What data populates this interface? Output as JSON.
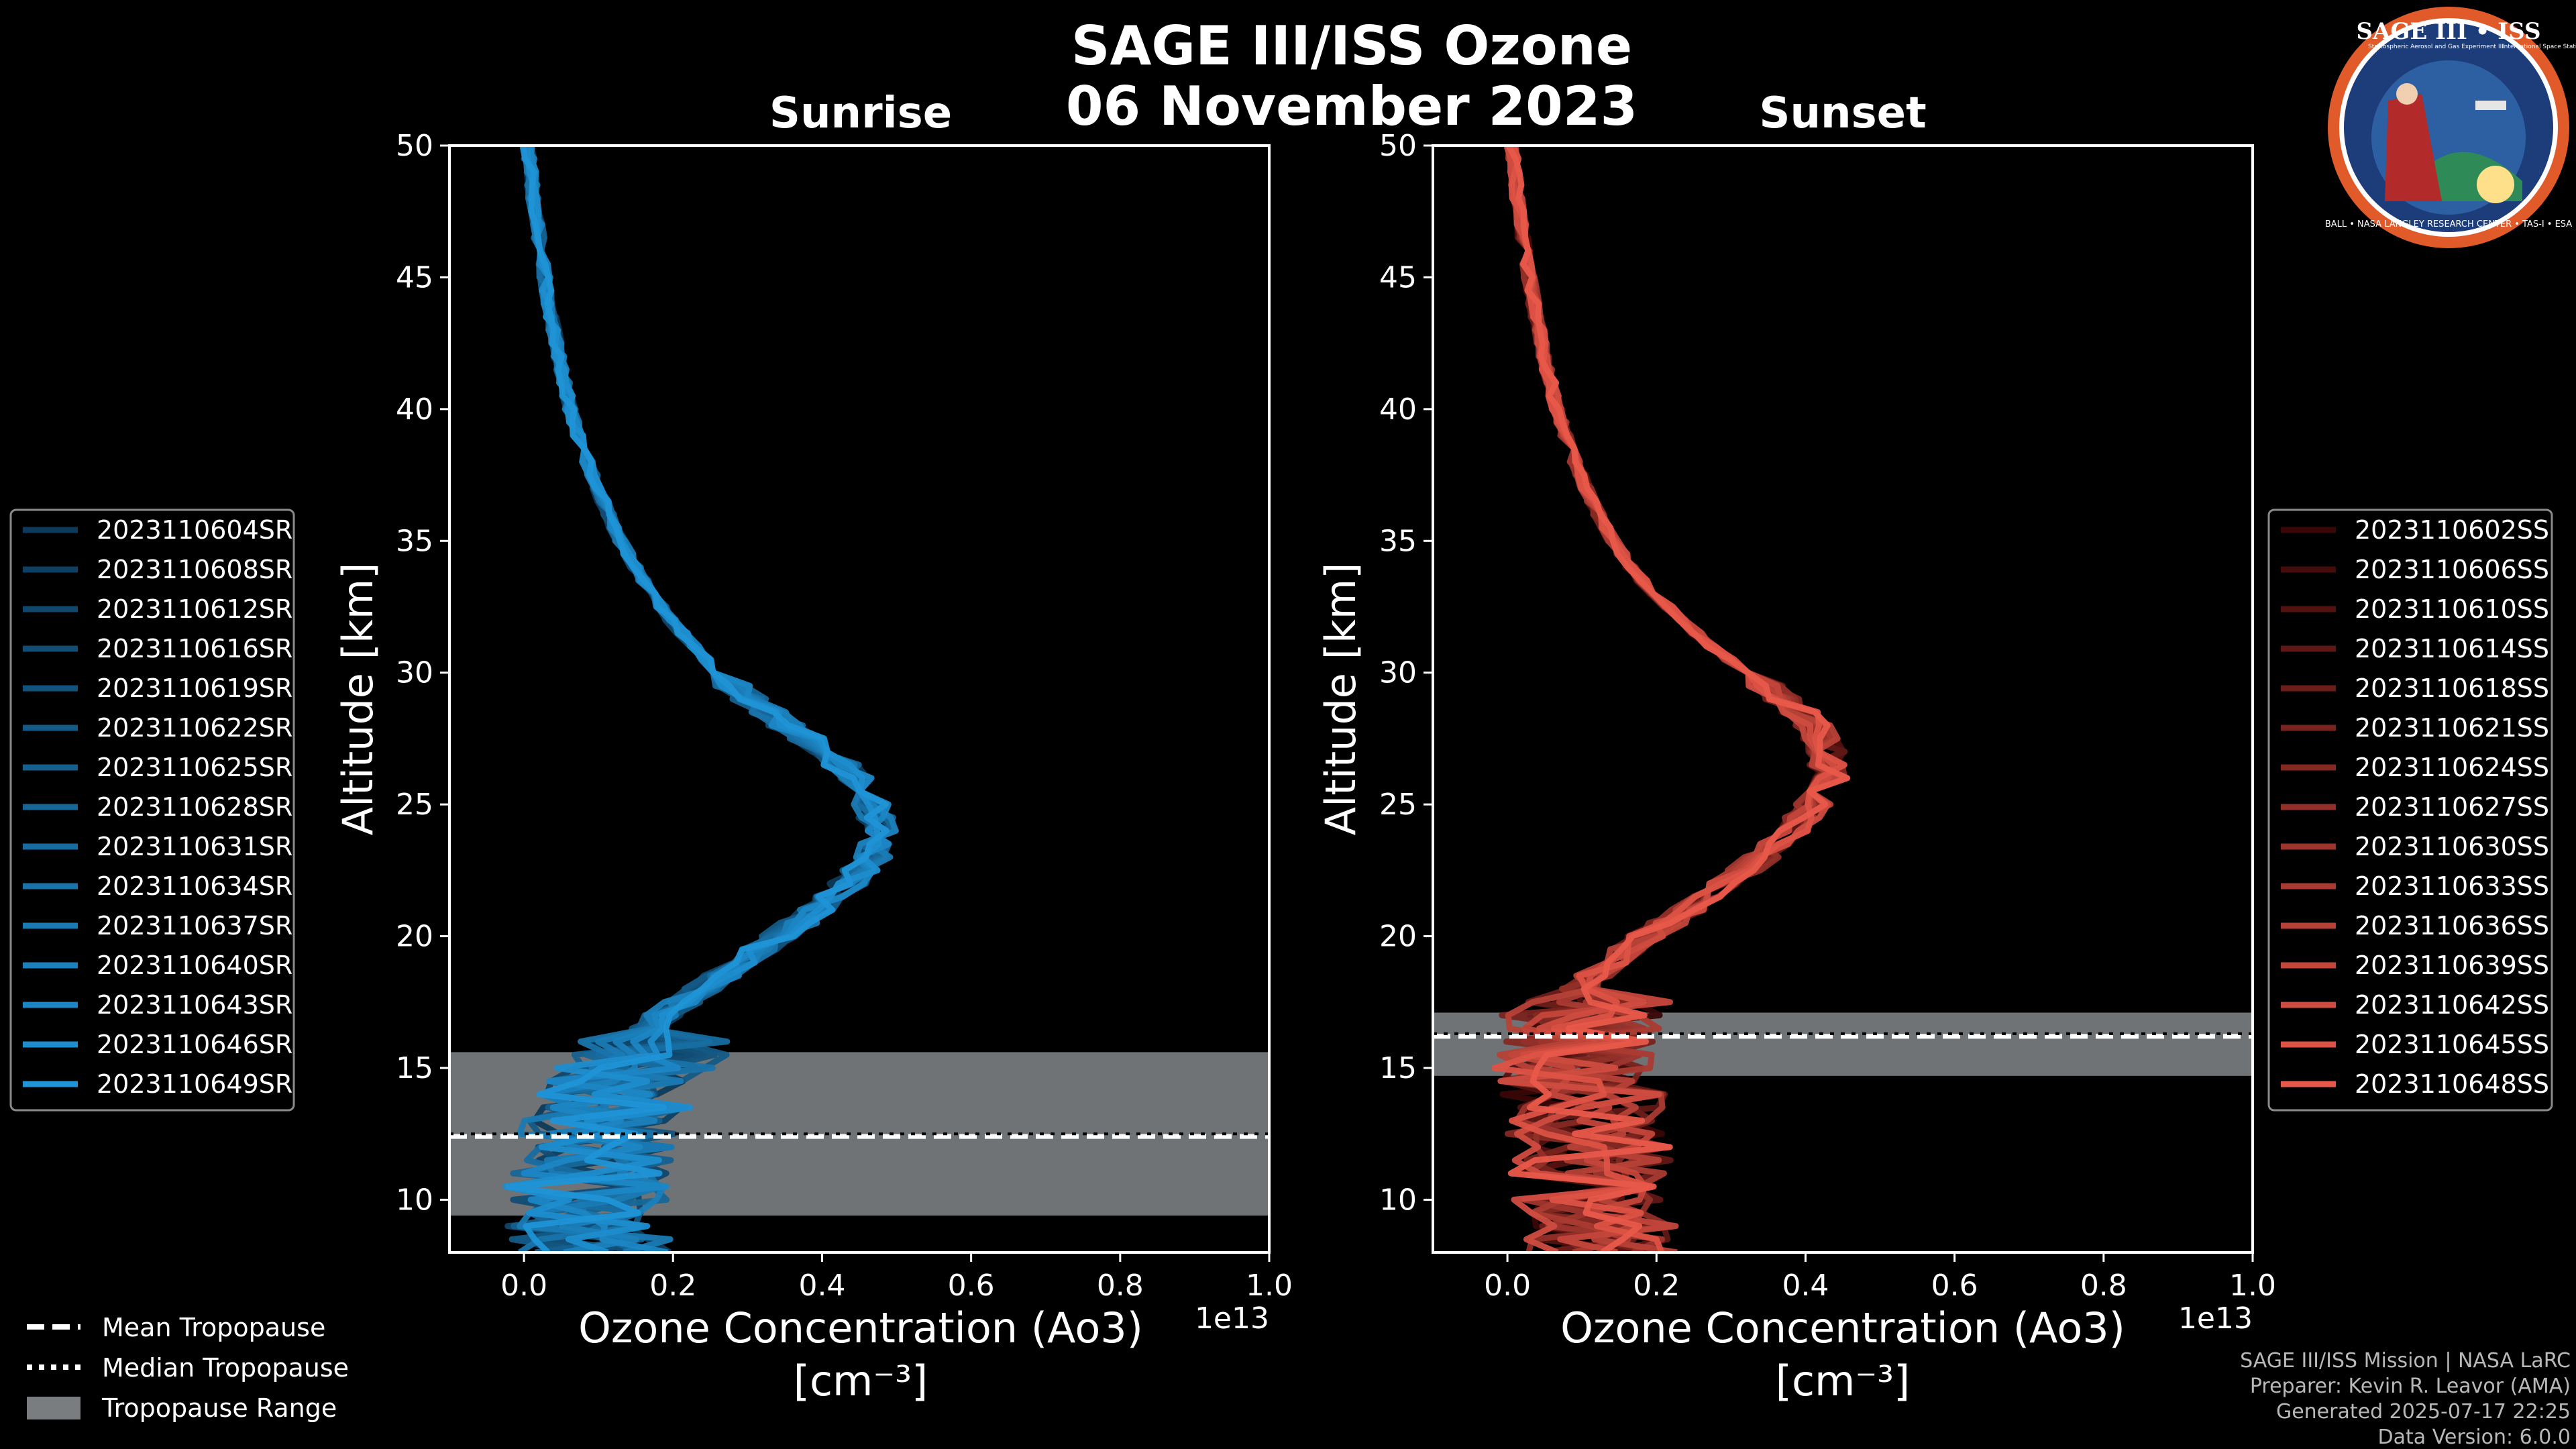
{
  "header": {
    "title_line1": "SAGE III/ISS Ozone",
    "title_line2": "06 November 2023"
  },
  "logo": {
    "text": "SAGE III • ISS",
    "ring_text": "BALL • NASA LANGLEY RESEARCH CENTER • TAS-I • ESA",
    "sub_left": "Stratospheric Aerosol and Gas Experiment III",
    "sub_right": "International Space Station"
  },
  "colors": {
    "background": "#000000",
    "sunrise_dark": "#0d3a5a",
    "sunrise_light": "#1f93d6",
    "sunset_dark": "#3a0606",
    "sunset_light": "#e8584a",
    "tropopause_fill": "#7a7d80"
  },
  "chart_data": [
    {
      "type": "line",
      "panel": "sunrise",
      "title": "Sunrise",
      "xlabel": "Ozone Concentration (Ao3)",
      "xunits": "[cm⁻³]",
      "ylabel": "Altitude [km]",
      "xlim": [
        -0.1,
        1.0
      ],
      "ylim": [
        8,
        50
      ],
      "x_offset_label": "1e13",
      "xticks": [
        "0.0",
        "0.2",
        "0.4",
        "0.6",
        "0.8",
        "1.0"
      ],
      "yticks": [
        "10",
        "15",
        "20",
        "25",
        "30",
        "35",
        "40",
        "45",
        "50"
      ],
      "tropopause": {
        "mean_km": 12.4,
        "median_km": 12.5,
        "range_km": [
          9.4,
          15.6
        ]
      },
      "mean_profile": {
        "alt": [
          8,
          9,
          10,
          11,
          12,
          13,
          14,
          15,
          16,
          17,
          18,
          19,
          20,
          21,
          22,
          23,
          24,
          25,
          26,
          27,
          28,
          29,
          30,
          31,
          32,
          33,
          34,
          35,
          36,
          37,
          38,
          39,
          40,
          42,
          44,
          46,
          48,
          50
        ],
        "x": [
          0.06,
          0.05,
          0.05,
          0.05,
          0.06,
          0.07,
          0.09,
          0.11,
          0.14,
          0.18,
          0.23,
          0.28,
          0.33,
          0.38,
          0.42,
          0.45,
          0.46,
          0.45,
          0.43,
          0.39,
          0.34,
          0.29,
          0.25,
          0.22,
          0.19,
          0.165,
          0.145,
          0.125,
          0.11,
          0.095,
          0.082,
          0.07,
          0.06,
          0.045,
          0.032,
          0.022,
          0.012,
          0.005
        ]
      },
      "series": [
        {
          "name": "2023110604SR"
        },
        {
          "name": "2023110608SR"
        },
        {
          "name": "2023110612SR"
        },
        {
          "name": "2023110616SR"
        },
        {
          "name": "2023110619SR"
        },
        {
          "name": "2023110622SR"
        },
        {
          "name": "2023110625SR"
        },
        {
          "name": "2023110628SR"
        },
        {
          "name": "2023110631SR"
        },
        {
          "name": "2023110634SR"
        },
        {
          "name": "2023110637SR"
        },
        {
          "name": "2023110640SR"
        },
        {
          "name": "2023110643SR"
        },
        {
          "name": "2023110646SR"
        },
        {
          "name": "2023110649SR"
        }
      ]
    },
    {
      "type": "line",
      "panel": "sunset",
      "title": "Sunset",
      "xlabel": "Ozone Concentration (Ao3)",
      "xunits": "[cm⁻³]",
      "ylabel": "Altitude [km]",
      "xlim": [
        -0.1,
        1.0
      ],
      "ylim": [
        8,
        50
      ],
      "x_offset_label": "1e13",
      "xticks": [
        "0.0",
        "0.2",
        "0.4",
        "0.6",
        "0.8",
        "1.0"
      ],
      "yticks": [
        "10",
        "15",
        "20",
        "25",
        "30",
        "35",
        "40",
        "45",
        "50"
      ],
      "tropopause": {
        "mean_km": 16.2,
        "median_km": 16.3,
        "range_km": [
          14.7,
          17.1
        ]
      },
      "mean_profile": {
        "alt": [
          8,
          9,
          10,
          11,
          12,
          13,
          14,
          15,
          16,
          17,
          18,
          19,
          20,
          21,
          22,
          23,
          24,
          25,
          26,
          27,
          28,
          29,
          30,
          31,
          32,
          33,
          34,
          35,
          36,
          37,
          38,
          39,
          40,
          42,
          44,
          46,
          48,
          50
        ],
        "x": [
          0.1,
          0.09,
          0.08,
          0.08,
          0.08,
          0.07,
          0.07,
          0.06,
          0.06,
          0.07,
          0.1,
          0.14,
          0.19,
          0.25,
          0.3,
          0.35,
          0.39,
          0.42,
          0.44,
          0.44,
          0.42,
          0.38,
          0.33,
          0.28,
          0.24,
          0.2,
          0.17,
          0.145,
          0.125,
          0.108,
          0.093,
          0.08,
          0.068,
          0.05,
          0.036,
          0.024,
          0.014,
          0.006
        ]
      },
      "series": [
        {
          "name": "2023110602SS"
        },
        {
          "name": "2023110606SS"
        },
        {
          "name": "2023110610SS"
        },
        {
          "name": "2023110614SS"
        },
        {
          "name": "2023110618SS"
        },
        {
          "name": "2023110621SS"
        },
        {
          "name": "2023110624SS"
        },
        {
          "name": "2023110627SS"
        },
        {
          "name": "2023110630SS"
        },
        {
          "name": "2023110633SS"
        },
        {
          "name": "2023110636SS"
        },
        {
          "name": "2023110639SS"
        },
        {
          "name": "2023110642SS"
        },
        {
          "name": "2023110645SS"
        },
        {
          "name": "2023110648SS"
        }
      ]
    }
  ],
  "tropopause_legend": {
    "mean": "Mean Tropopause",
    "median": "Median Tropopause",
    "range": "Tropopause Range"
  },
  "credits": {
    "line1": "SAGE III/ISS Mission | NASA LaRC",
    "line2": "Preparer: Kevin R. Leavor (AMA)",
    "line3": "Generated 2025-07-17 22:25",
    "line4": "Data Version: 6.0.0"
  }
}
